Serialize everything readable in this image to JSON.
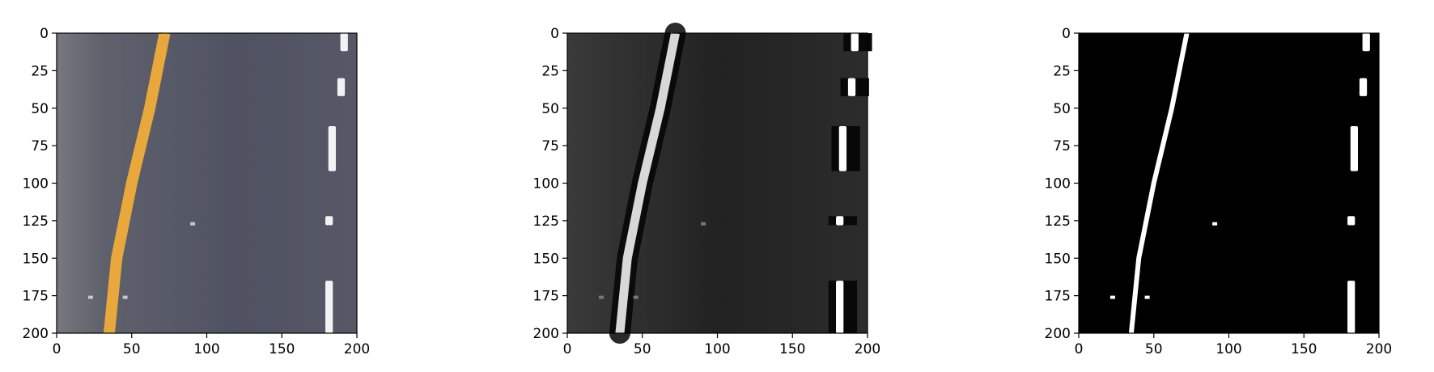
{
  "figure": {
    "background": "#ffffff",
    "axes_color": "#000000"
  },
  "panels": [
    {
      "name": "color",
      "xticks": [
        "0",
        "50",
        "100",
        "150",
        "200"
      ],
      "yticks": [
        "0",
        "25",
        "50",
        "75",
        "100",
        "125",
        "150",
        "175",
        "200"
      ],
      "xlim": [
        0,
        200
      ],
      "ylim": [
        0,
        200
      ],
      "colors": {
        "road": "#5a5c6b",
        "lane_left": "#e8a83c",
        "lane_right": "#f2f2f2"
      }
    },
    {
      "name": "gradient",
      "xticks": [
        "0",
        "50",
        "100",
        "150",
        "200"
      ],
      "yticks": [
        "0",
        "25",
        "50",
        "75",
        "100",
        "125",
        "150",
        "175",
        "200"
      ],
      "xlim": [
        0,
        200
      ],
      "ylim": [
        0,
        200
      ],
      "colors": {
        "road": "#2a2a2a",
        "lane_left": "#d8d8d8",
        "lane_right": "#ffffff"
      }
    },
    {
      "name": "binary",
      "xticks": [
        "0",
        "50",
        "100",
        "150",
        "200"
      ],
      "yticks": [
        "0",
        "25",
        "50",
        "75",
        "100",
        "125",
        "150",
        "175",
        "200"
      ],
      "xlim": [
        0,
        200
      ],
      "ylim": [
        0,
        200
      ],
      "colors": {
        "road": "#000000",
        "lane_left": "#ffffff",
        "lane_right": "#ffffff"
      }
    }
  ]
}
